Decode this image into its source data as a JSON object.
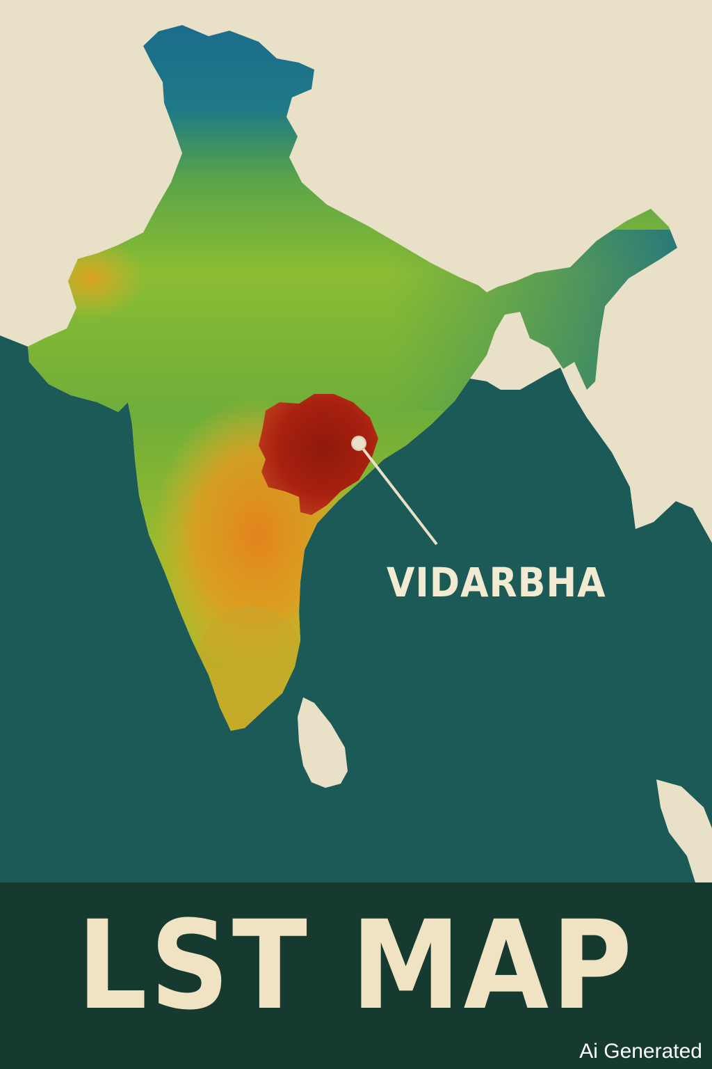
{
  "map": {
    "callout_label": "VIDARBHA",
    "title": "LST MAP",
    "watermark": "Ai Generated",
    "colors": {
      "paper": "#e9e0c8",
      "sea": "#1c5a57",
      "footer": "#163a2f",
      "text": "#efe3c3",
      "cool": "#1c6e8a",
      "mid": "#7cb342",
      "warm": "#e69a1f",
      "hot": "#a8200f"
    }
  }
}
